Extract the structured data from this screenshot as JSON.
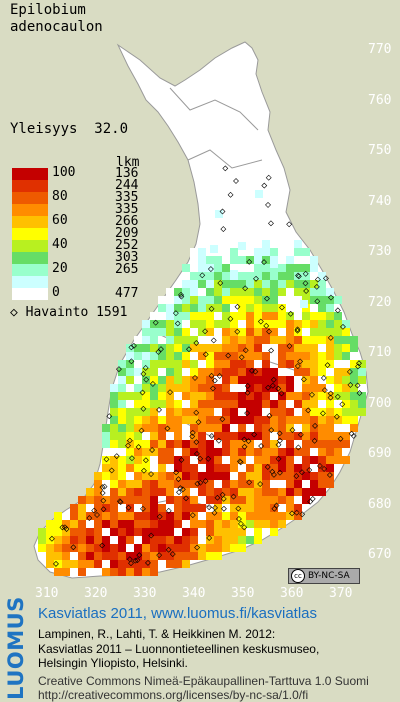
{
  "species": {
    "genus": "Epilobium",
    "epithet": "adenocaulon"
  },
  "frequency": {
    "label": "Yleisyys",
    "value": "32.0"
  },
  "legend": {
    "header": "lkm",
    "items": [
      {
        "label": "100",
        "count": "136",
        "color": "#c40000"
      },
      {
        "label": "",
        "count": "244",
        "color": "#e03000"
      },
      {
        "label": "80",
        "count": "335",
        "color": "#ee5a00"
      },
      {
        "label": "",
        "count": "335",
        "color": "#ff8c00"
      },
      {
        "label": "60",
        "count": "266",
        "color": "#ffc000"
      },
      {
        "label": "",
        "count": "209",
        "color": "#ffff00"
      },
      {
        "label": "40",
        "count": "252",
        "color": "#b8f020"
      },
      {
        "label": "",
        "count": "303",
        "color": "#66dd66"
      },
      {
        "label": "20",
        "count": "265",
        "color": "#99ffcc"
      },
      {
        "label": "",
        "count": "",
        "color": "#ccffff"
      },
      {
        "label": "0",
        "count": "477",
        "color": "#ffffff"
      }
    ]
  },
  "observations": {
    "label": "Havainto",
    "count": "1591"
  },
  "y_ticks": [
    "770",
    "760",
    "750",
    "740",
    "730",
    "720",
    "710",
    "700",
    "690",
    "680",
    "670"
  ],
  "x_ticks": [
    "310",
    "320",
    "330",
    "340",
    "350",
    "360",
    "370"
  ],
  "license_badge": "BY-NC-SA",
  "footer": {
    "logo": "LUOMUS",
    "title": "Kasviatlas 2011, www.luomus.fi/kasviatlas",
    "citation_1": "Lampinen, R., Lahti, T. & Heikkinen M. 2012:",
    "citation_2": "Kasviatlas 2011 – Luonnontieteellinen keskusmuseo,",
    "citation_3": "Helsingin Yliopisto, Helsinki.",
    "license_1": "Creative Commons Nimeä-Epäkaupallinen-Tarttuva 1.0 Suomi",
    "license_2": "http://creativecommons.org/licenses/by-nc-sa/1.0/fi"
  },
  "colors": {
    "background": "#d9dcc3",
    "land": "#ffffff",
    "accent": "#1a6fc0"
  }
}
